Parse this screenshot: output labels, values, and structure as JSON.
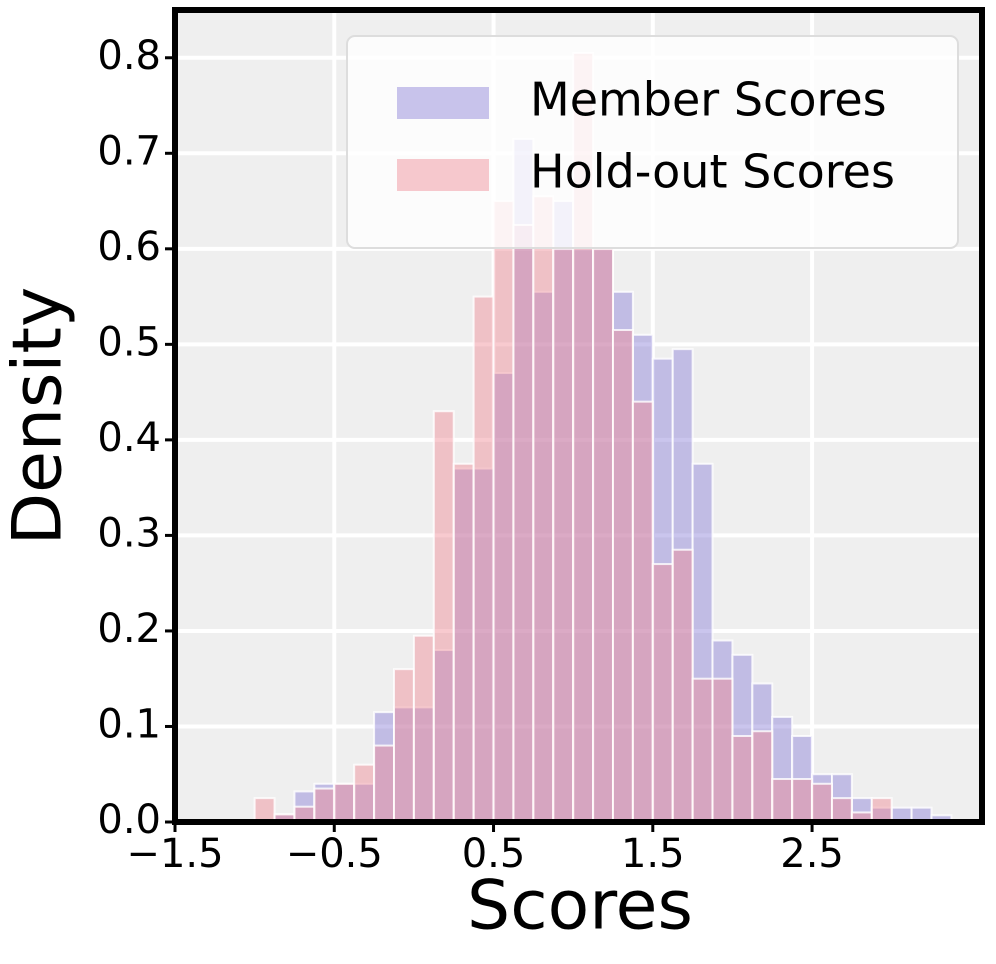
{
  "chart_data": {
    "type": "histogram",
    "xlabel": "Scores",
    "ylabel": "Density",
    "bins": [
      -1.0,
      -0.875,
      -0.75,
      -0.625,
      -0.5,
      -0.375,
      -0.25,
      -0.125,
      0.0,
      0.125,
      0.25,
      0.375,
      0.5,
      0.625,
      0.75,
      0.875,
      1.0,
      1.125,
      1.25,
      1.375,
      1.5,
      1.625,
      1.75,
      1.875,
      2.0,
      2.125,
      2.25,
      2.375,
      2.5,
      2.625,
      2.75,
      2.875,
      3.0,
      3.125,
      3.25,
      3.375
    ],
    "series": [
      {
        "name": "Member Scores",
        "color": "#8a7fd8",
        "values": [
          0,
          0.008,
          0.032,
          0.04,
          0.04,
          0.04,
          0.115,
          0.12,
          0.12,
          0.18,
          0.37,
          0.37,
          0.47,
          0.715,
          0.555,
          0.65,
          0.6,
          0.6,
          0.555,
          0.51,
          0.485,
          0.495,
          0.375,
          0.19,
          0.175,
          0.145,
          0.11,
          0.09,
          0.05,
          0.05,
          0.025,
          0.015,
          0.015,
          0.015,
          0.007
        ]
      },
      {
        "name": "Hold-out Scores",
        "color": "#f08a95",
        "values": [
          0.025,
          0.008,
          0.016,
          0.035,
          0.04,
          0.06,
          0.08,
          0.16,
          0.195,
          0.43,
          0.375,
          0.55,
          0.65,
          0.625,
          0.655,
          0.6,
          0.805,
          0.6,
          0.515,
          0.44,
          0.27,
          0.285,
          0.15,
          0.15,
          0.09,
          0.095,
          0.045,
          0.045,
          0.04,
          0.025,
          0.01,
          0.025,
          0,
          0,
          0
        ]
      }
    ],
    "xlim": [
      -1.5,
      3.567
    ],
    "ylim": [
      0,
      0.85
    ],
    "xticks": [
      {
        "value": -1.5,
        "label": "−1.5"
      },
      {
        "value": -0.5,
        "label": "−0.5"
      },
      0.5,
      1.5,
      2.5
    ],
    "yticks": [
      {
        "value": 0,
        "label": "0.0"
      },
      0.1,
      0.2,
      0.3,
      0.4,
      0.5,
      0.6,
      0.7,
      0.8
    ],
    "grid": true,
    "legend": "upper right"
  }
}
